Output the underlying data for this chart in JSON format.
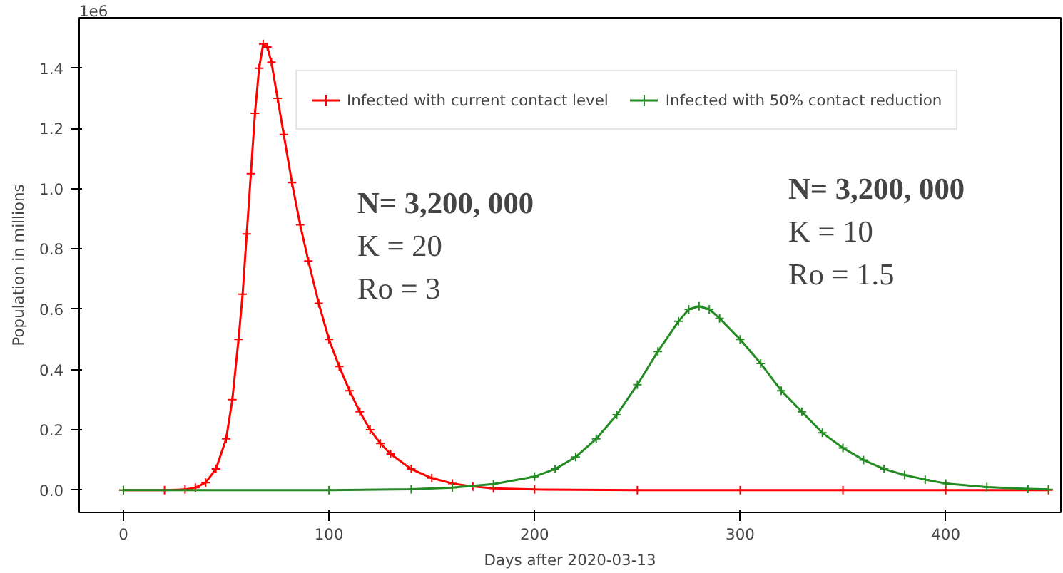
{
  "chart_data": {
    "type": "line",
    "xlabel": "Days after 2020-03-13",
    "ylabel": "Population in millions",
    "xlim": [
      -21.5,
      456
    ],
    "ylim": [
      -0.074,
      1.567
    ],
    "xticks": [
      0,
      100,
      200,
      300,
      400
    ],
    "yticks": [
      {
        "value": 0,
        "label": "0.0"
      },
      {
        "value": 0.2,
        "label": "0.2"
      },
      {
        "value": 0.4,
        "label": "0.4"
      },
      {
        "value": 0.6,
        "label": "0.6"
      },
      {
        "value": 0.8,
        "label": "0.8"
      },
      {
        "value": 1.0,
        "label": "1.0"
      },
      {
        "value": 1.2,
        "label": "1.2"
      },
      {
        "value": 1.4,
        "label": "1.4"
      }
    ],
    "grid": false,
    "legend": "top right",
    "marker": "cross",
    "line_style": "solid",
    "annotations": [
      "1e6",
      "N= 3,200, 000",
      "K = 20",
      "Ro = 3",
      "N= 3,200, 000",
      "K = 10",
      "Ro = 1.5"
    ],
    "series": [
      {
        "name": "Infected with current contact level",
        "color": "#ff0000",
        "x": [
          0,
          20,
          30,
          35,
          40,
          45,
          50,
          53,
          56,
          58,
          60,
          62,
          64,
          66,
          68,
          70,
          72,
          75,
          78,
          82,
          86,
          90,
          95,
          100,
          105,
          110,
          115,
          120,
          125,
          130,
          140,
          150,
          160,
          170,
          180,
          200,
          250,
          300,
          350,
          400,
          450
        ],
        "values": [
          0,
          0,
          0.002,
          0.008,
          0.025,
          0.07,
          0.17,
          0.3,
          0.5,
          0.65,
          0.85,
          1.05,
          1.25,
          1.4,
          1.48,
          1.47,
          1.42,
          1.3,
          1.18,
          1.02,
          0.88,
          0.76,
          0.62,
          0.5,
          0.41,
          0.33,
          0.26,
          0.2,
          0.155,
          0.12,
          0.07,
          0.04,
          0.022,
          0.012,
          0.006,
          0.002,
          0,
          0,
          0,
          0,
          0
        ]
      },
      {
        "name": "Infected with 50% contact reduction",
        "color": "#228b22",
        "x": [
          0,
          100,
          140,
          160,
          180,
          200,
          210,
          220,
          230,
          240,
          250,
          260,
          270,
          275,
          280,
          285,
          290,
          300,
          310,
          320,
          330,
          340,
          350,
          360,
          370,
          380,
          390,
          400,
          420,
          440,
          450
        ],
        "values": [
          0,
          0,
          0.003,
          0.008,
          0.02,
          0.045,
          0.07,
          0.11,
          0.17,
          0.25,
          0.35,
          0.46,
          0.56,
          0.6,
          0.61,
          0.6,
          0.57,
          0.5,
          0.42,
          0.33,
          0.26,
          0.19,
          0.14,
          0.1,
          0.07,
          0.05,
          0.035,
          0.022,
          0.01,
          0.004,
          0.002
        ]
      }
    ]
  }
}
